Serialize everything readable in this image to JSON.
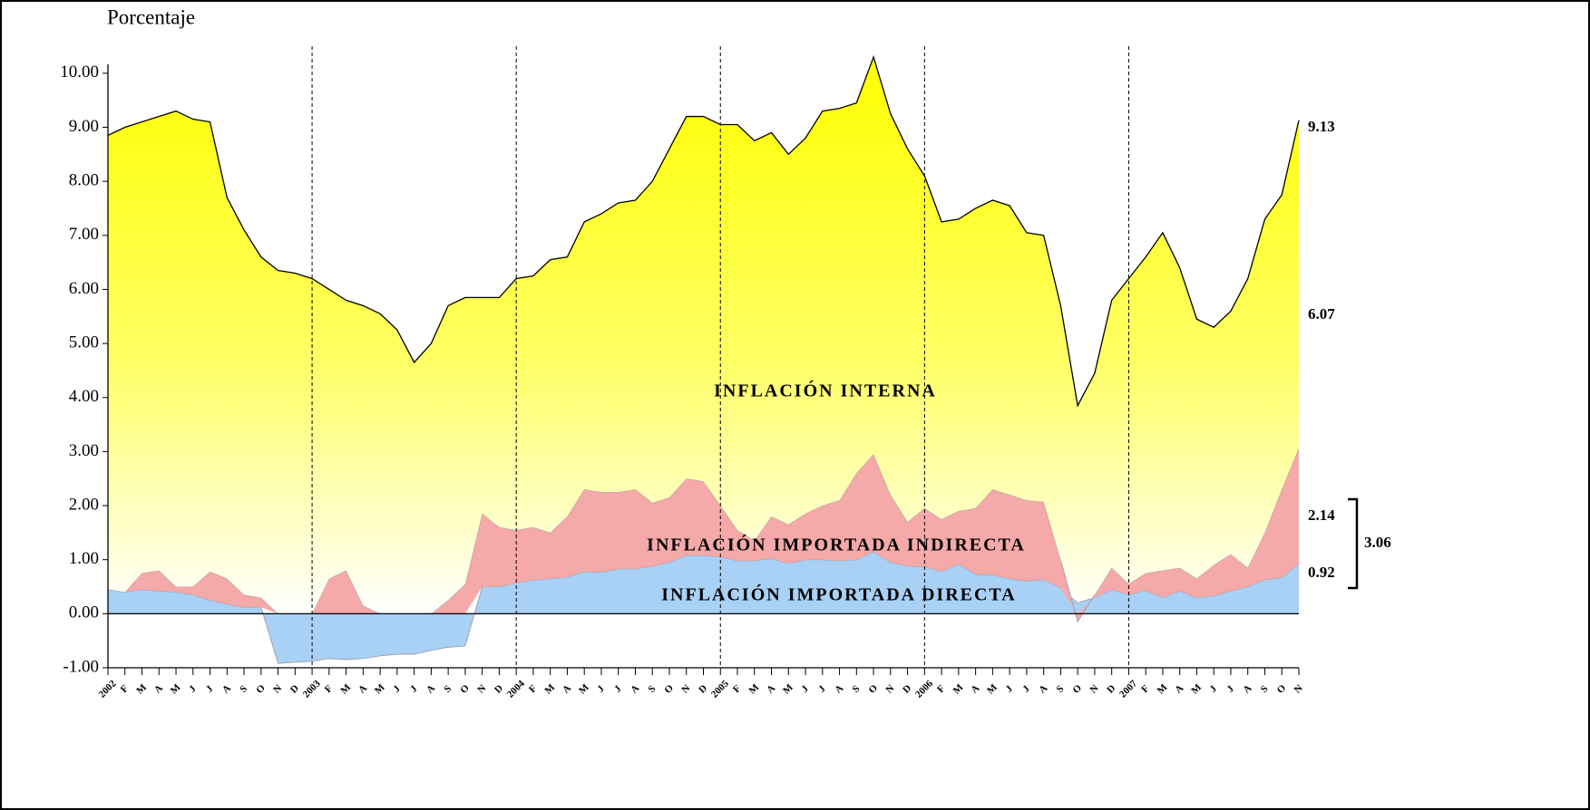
{
  "chart_data": {
    "type": "area",
    "stacked": true,
    "title": "Porcentaje",
    "categories": [
      "2002",
      "F",
      "M",
      "A",
      "M",
      "J",
      "J",
      "A",
      "S",
      "O",
      "N",
      "D",
      "2003",
      "F",
      "M",
      "A",
      "M",
      "J",
      "J",
      "A",
      "S",
      "O",
      "N",
      "D",
      "2004",
      "F",
      "M",
      "A",
      "M",
      "J",
      "J",
      "A",
      "S",
      "O",
      "N",
      "D",
      "2005",
      "F",
      "M",
      "A",
      "M",
      "J",
      "J",
      "A",
      "S",
      "O",
      "N",
      "D",
      "2006",
      "F",
      "M",
      "A",
      "M",
      "J",
      "J",
      "A",
      "S",
      "O",
      "N",
      "D",
      "2007",
      "F",
      "M",
      "A",
      "M",
      "J",
      "J",
      "A",
      "S",
      "O",
      "N"
    ],
    "series": [
      {
        "name": "INFLACIÓN IMPORTADA DIRECTA",
        "color": "#a9d0f5",
        "values": [
          0.45,
          0.4,
          0.45,
          0.42,
          0.4,
          0.35,
          0.25,
          0.18,
          0.12,
          0.12,
          -0.92,
          -0.9,
          -0.88,
          -0.83,
          -0.85,
          -0.83,
          -0.78,
          -0.75,
          -0.75,
          -0.68,
          -0.62,
          -0.6,
          0.5,
          0.5,
          0.57,
          0.62,
          0.65,
          0.68,
          0.78,
          0.77,
          0.83,
          0.83,
          0.88,
          0.95,
          1.08,
          1.08,
          1.05,
          0.98,
          0.98,
          1.02,
          0.93,
          1.0,
          1.0,
          0.98,
          1.0,
          1.15,
          0.95,
          0.88,
          0.87,
          0.78,
          0.92,
          0.73,
          0.72,
          0.65,
          0.6,
          0.63,
          0.48,
          0.2,
          0.3,
          0.45,
          0.35,
          0.43,
          0.3,
          0.42,
          0.3,
          0.33,
          0.42,
          0.5,
          0.63,
          0.67,
          0.92
        ]
      },
      {
        "name": "INFLACIÓN IMPORTADA INDIRECTA",
        "color": "#f5a9a9",
        "values": [
          0,
          0,
          0.3,
          0.38,
          0.1,
          0.15,
          0.53,
          0.47,
          0.23,
          0.18,
          0,
          0,
          0,
          0.65,
          0.8,
          0.15,
          0,
          0,
          0,
          0,
          0.25,
          0.55,
          1.35,
          1.1,
          0.98,
          0.98,
          0.85,
          1.12,
          1.52,
          1.48,
          1.42,
          1.47,
          1.17,
          1.2,
          1.42,
          1.37,
          0.95,
          0.57,
          0.37,
          0.78,
          0.72,
          0.85,
          1.0,
          1.12,
          1.6,
          1.8,
          1.25,
          0.82,
          1.08,
          0.97,
          0.98,
          1.22,
          1.58,
          1.55,
          1.5,
          1.44,
          0.52,
          -0.15,
          0.05,
          0.4,
          0.2,
          0.32,
          0.5,
          0.43,
          0.35,
          0.57,
          0.68,
          0.35,
          0.87,
          1.63,
          2.14
        ]
      },
      {
        "name": "INFLACIÓN INTERNA",
        "color": "#ffff00",
        "values": [
          8.4,
          8.6,
          8.35,
          8.4,
          8.8,
          8.65,
          8.32,
          7.05,
          6.75,
          6.3,
          6.35,
          6.3,
          6.2,
          5.35,
          5.0,
          5.55,
          5.55,
          5.25,
          4.65,
          5.0,
          5.45,
          5.3,
          4.0,
          4.25,
          4.65,
          4.65,
          5.05,
          4.8,
          4.95,
          5.15,
          5.35,
          5.35,
          5.95,
          6.45,
          6.7,
          6.75,
          7.05,
          7.5,
          7.4,
          7.1,
          6.85,
          6.95,
          7.3,
          7.25,
          6.85,
          7.35,
          7.05,
          6.9,
          6.15,
          5.5,
          5.4,
          5.55,
          5.35,
          5.35,
          4.95,
          4.93,
          4.7,
          3.65,
          4.1,
          4.95,
          5.65,
          5.85,
          6.25,
          5.55,
          4.8,
          4.4,
          4.5,
          5.35,
          5.8,
          5.45,
          6.07
        ]
      }
    ],
    "ylim": [
      -1,
      10.5
    ],
    "yticks": [
      {
        "value": -1,
        "label": "-1.00"
      },
      {
        "value": 0,
        "label": "0.00"
      },
      {
        "value": 1,
        "label": "1.00"
      },
      {
        "value": 2,
        "label": "2.00"
      },
      {
        "value": 3,
        "label": "3.00"
      },
      {
        "value": 4,
        "label": "4.00"
      },
      {
        "value": 5,
        "label": "5.00"
      },
      {
        "value": 6,
        "label": "6.00"
      },
      {
        "value": 7,
        "label": "7.00"
      },
      {
        "value": 8,
        "label": "8.00"
      },
      {
        "value": 9,
        "label": "9.00"
      },
      {
        "value": 10,
        "label": "10.00"
      }
    ],
    "annotations": [
      {
        "text": "9.13"
      },
      {
        "text": "6.07"
      },
      {
        "text": "2.14"
      },
      {
        "text": "0.92"
      },
      {
        "text": "3.06"
      }
    ]
  }
}
